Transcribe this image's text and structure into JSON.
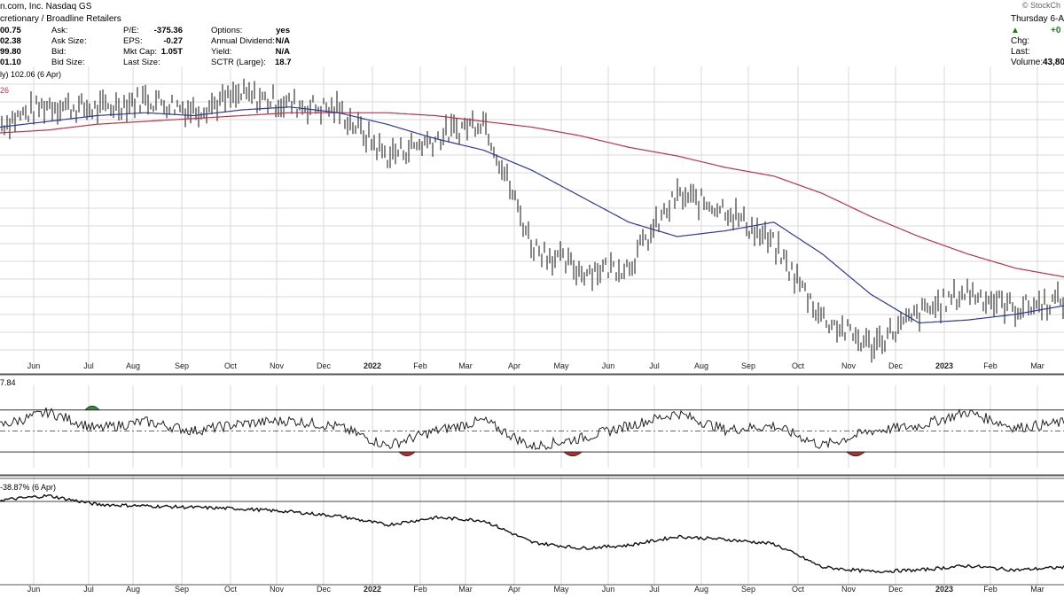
{
  "header": {
    "line1": "n.com, Inc. Nasdaq GS",
    "line2": "cretionary / Broadline Retailers",
    "quote": [
      {
        "v": "00.75",
        "k": "Ask:",
        "k2": "P/E:",
        "v2": "-375.36",
        "k3": "Options:",
        "v3": "yes"
      },
      {
        "v": "02.38",
        "k": "Ask Size:",
        "k2": "EPS:",
        "v2": "-0.27",
        "k3": "Annual Dividend:",
        "v3": "N/A"
      },
      {
        "v": "99.80",
        "k": "Bid:",
        "k2": "Mkt Cap:",
        "v2": "1.05T",
        "k3": "Yield:",
        "v3": "N/A"
      },
      {
        "v": "01.10",
        "k": "Bid Size:",
        "k2": "Last Size:",
        "v2": "",
        "k3": "SCTR (Large):",
        "v3": "18.7"
      }
    ],
    "right": {
      "date": "Thursday 6-Ap",
      "change": "+0",
      "chg_label": "Chg:",
      "last_label": "Last:",
      "volume_label": "Volume:",
      "volume_value": "43,80"
    },
    "logo": "© StockCh"
  },
  "panels": {
    "price_label": "ly) 102.06 (6 Apr)",
    "price_axis_fragment": "26",
    "rsi_label": "7.84",
    "rel_label": "-38.87% (6 Apr)"
  },
  "colors": {
    "price_bars": "#111111",
    "ma_short": "#2a3a9c",
    "ma_long": "#c0304a",
    "rsi_overbought_fill": "#3a8a3a",
    "rsi_oversold_fill": "#b03030",
    "grid": "#d8d8d8"
  },
  "chart_data": {
    "type": "line",
    "x_axis_labels": [
      "Jun",
      "Jul",
      "Aug",
      "Sep",
      "Oct",
      "Nov",
      "Dec",
      "2022",
      "Feb",
      "Mar",
      "Apr",
      "May",
      "Jun",
      "Jul",
      "Aug",
      "Sep",
      "Oct",
      "Nov",
      "Dec",
      "2023",
      "Feb",
      "Mar"
    ],
    "x": [
      "2021-06",
      "2021-07",
      "2021-08",
      "2021-09",
      "2021-10",
      "2021-11",
      "2021-12",
      "2022-01",
      "2022-02",
      "2022-03",
      "2022-04",
      "2022-05",
      "2022-06",
      "2022-07",
      "2022-08",
      "2022-09",
      "2022-10",
      "2022-11",
      "2022-12",
      "2023-01",
      "2023-02",
      "2023-03",
      "2023-04"
    ],
    "series": [
      {
        "values": [
          163,
          170,
          168,
          172,
          168,
          173,
          170,
          168,
          152,
          158,
          165,
          121,
          112,
          114,
          138,
          134,
          121,
          96,
          86,
          97,
          105,
          99,
          102
        ]
      },
      {
        "values": [
          162,
          164,
          166,
          167,
          166,
          168,
          169,
          167,
          163,
          158,
          154,
          147,
          138,
          129,
          124,
          126,
          129,
          118,
          104,
          94,
          95,
          97,
          100
        ]
      },
      {
        "values": [
          160,
          161,
          163,
          164,
          165,
          166,
          167,
          167,
          167,
          166,
          164,
          162,
          159,
          155,
          152,
          148,
          145,
          139,
          131,
          124,
          118,
          113,
          110
        ]
      },
      {
        "values": [
          55,
          68,
          52,
          59,
          50,
          57,
          60,
          54,
          36,
          50,
          60,
          35,
          43,
          55,
          67,
          51,
          55,
          36,
          50,
          55,
          68,
          53,
          58
        ]
      },
      {
        "values": [
          100,
          103,
          97,
          96,
          95,
          94,
          92,
          89,
          83,
          88,
          86,
          71,
          67,
          69,
          75,
          73,
          70,
          54,
          51,
          52,
          55,
          52,
          54
        ]
      }
    ]
  }
}
